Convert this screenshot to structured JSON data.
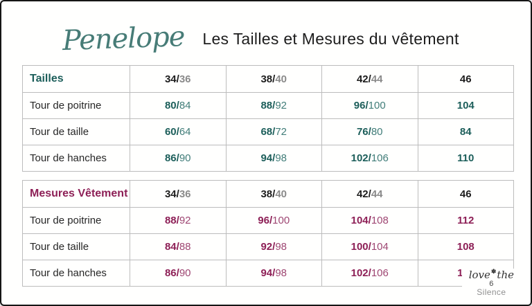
{
  "header": {
    "brand_script": "Penelope",
    "title": "Les Tailles et Mesures du vêtement"
  },
  "theme": {
    "brand_teal": "#477c77",
    "body_accent": "#1c5e5a",
    "body_accent_light": "#417d79",
    "garment_accent": "#8d1f56",
    "garment_accent_light": "#9e4672",
    "size_header_dark": "#1c1c1c",
    "size_header_gray": "#8a8a8a"
  },
  "tables": [
    {
      "header_label": "Tailles",
      "sizes": [
        {
          "main": "34/",
          "sub": "36"
        },
        {
          "main": "38/",
          "sub": "40"
        },
        {
          "main": "42/",
          "sub": "44"
        },
        {
          "main": "46",
          "sub": ""
        }
      ],
      "rows": [
        {
          "label": "Tour de poitrine",
          "values": [
            {
              "main": "80/",
              "sub": "84"
            },
            {
              "main": "88/",
              "sub": "92"
            },
            {
              "main": "96/",
              "sub": "100"
            },
            {
              "main": "104",
              "sub": ""
            }
          ]
        },
        {
          "label": "Tour de taille",
          "values": [
            {
              "main": "60/",
              "sub": "64"
            },
            {
              "main": "68/",
              "sub": "72"
            },
            {
              "main": "76/",
              "sub": "80"
            },
            {
              "main": "84",
              "sub": ""
            }
          ]
        },
        {
          "label": "Tour de hanches",
          "values": [
            {
              "main": "86/",
              "sub": "90"
            },
            {
              "main": "94/",
              "sub": "98"
            },
            {
              "main": "102/",
              "sub": "106"
            },
            {
              "main": "110",
              "sub": ""
            }
          ]
        }
      ]
    },
    {
      "header_label": "Mesures Vêtement",
      "sizes": [
        {
          "main": "34/",
          "sub": "36"
        },
        {
          "main": "38/",
          "sub": "40"
        },
        {
          "main": "42/",
          "sub": "44"
        },
        {
          "main": "46",
          "sub": ""
        }
      ],
      "rows": [
        {
          "label": "Tour de poitrine",
          "values": [
            {
              "main": "88/",
              "sub": "92"
            },
            {
              "main": "96/",
              "sub": "100"
            },
            {
              "main": "104/",
              "sub": "108"
            },
            {
              "main": "112",
              "sub": ""
            }
          ]
        },
        {
          "label": "Tour de taille",
          "values": [
            {
              "main": "84/",
              "sub": "88"
            },
            {
              "main": "92/",
              "sub": "98"
            },
            {
              "main": "100/",
              "sub": "104"
            },
            {
              "main": "108",
              "sub": ""
            }
          ]
        },
        {
          "label": "Tour de hanches",
          "values": [
            {
              "main": "86/",
              "sub": "90"
            },
            {
              "main": "94/",
              "sub": "98"
            },
            {
              "main": "102/",
              "sub": "106"
            },
            {
              "main": "110",
              "sub": ""
            }
          ]
        }
      ]
    }
  ],
  "footer_logo": {
    "script_left": "love",
    "flower_glyph": "✽",
    "script_right": "the",
    "page_number": "6",
    "brand_name": "Silence"
  }
}
